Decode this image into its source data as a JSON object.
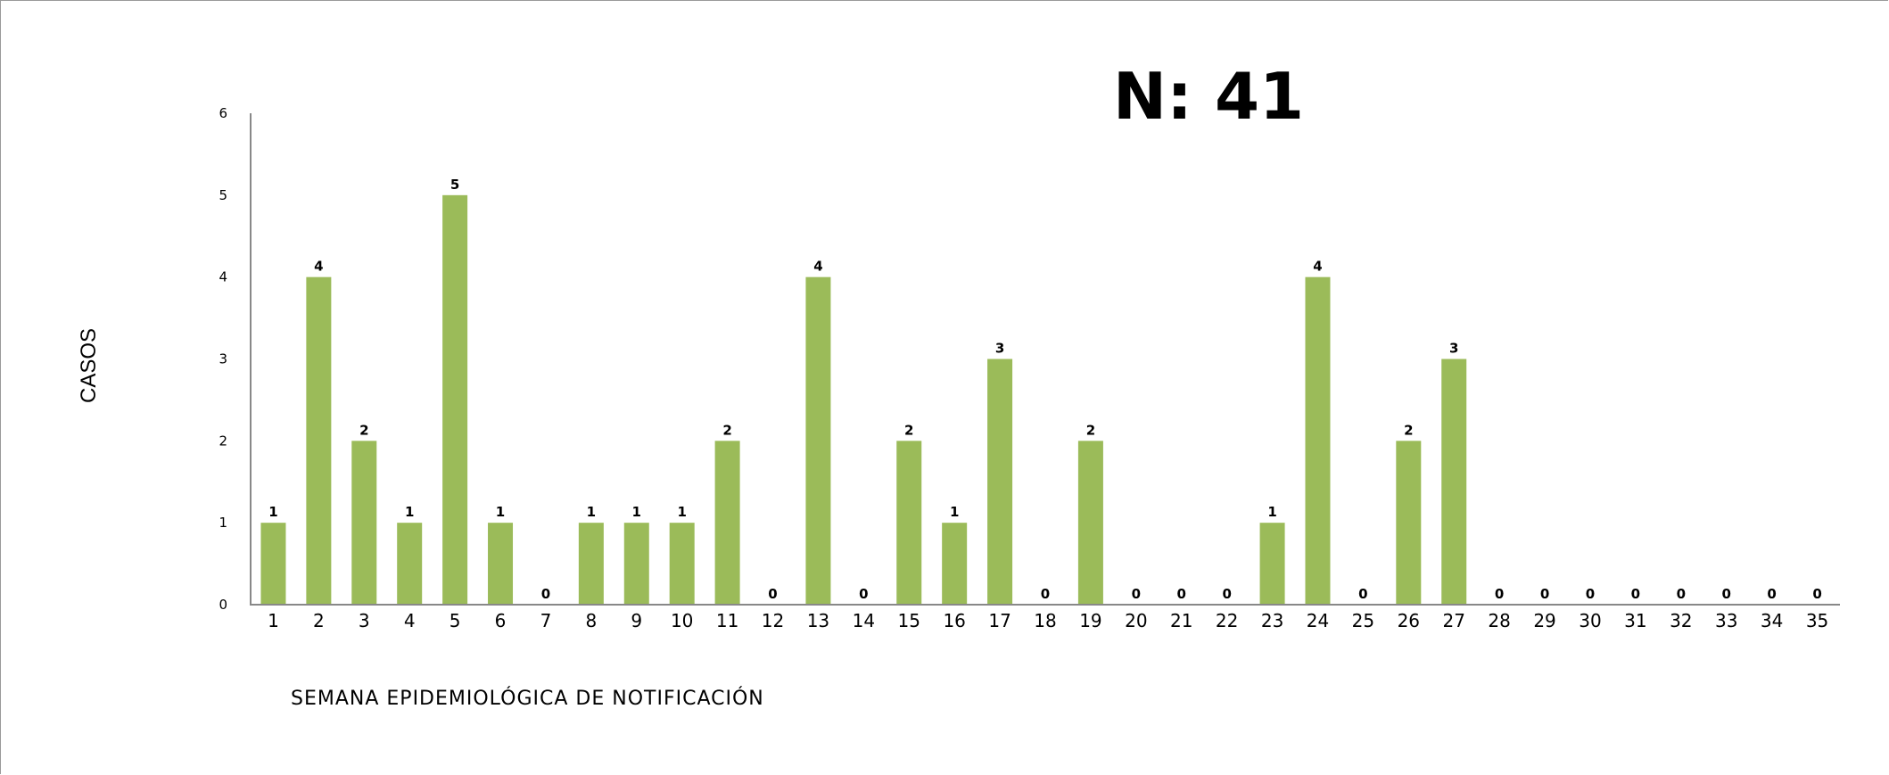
{
  "chart_data": {
    "type": "bar",
    "title": "N: 41",
    "xlabel": "SEMANA EPIDEMIOLÓGICA DE NOTIFICACIÓN",
    "ylabel": "CASOS",
    "ylim": [
      0,
      6
    ],
    "yticks": [
      "0",
      "1",
      "2",
      "3",
      "4",
      "5",
      "6"
    ],
    "categories": [
      "1",
      "2",
      "3",
      "4",
      "5",
      "6",
      "7",
      "8",
      "9",
      "10",
      "11",
      "12",
      "13",
      "14",
      "15",
      "16",
      "17",
      "18",
      "19",
      "20",
      "21",
      "22",
      "23",
      "24",
      "25",
      "26",
      "27",
      "28",
      "29",
      "30",
      "31",
      "32",
      "33",
      "34",
      "35"
    ],
    "values": [
      1,
      4,
      2,
      1,
      5,
      1,
      0,
      1,
      1,
      1,
      2,
      0,
      4,
      0,
      2,
      1,
      3,
      0,
      2,
      0,
      0,
      0,
      1,
      4,
      0,
      2,
      3,
      0,
      0,
      0,
      0,
      0,
      0,
      0,
      0
    ],
    "bar_color": "#9bbb59",
    "axis_color": "#888888",
    "grid": false,
    "legend": "none",
    "data_labels": true
  }
}
